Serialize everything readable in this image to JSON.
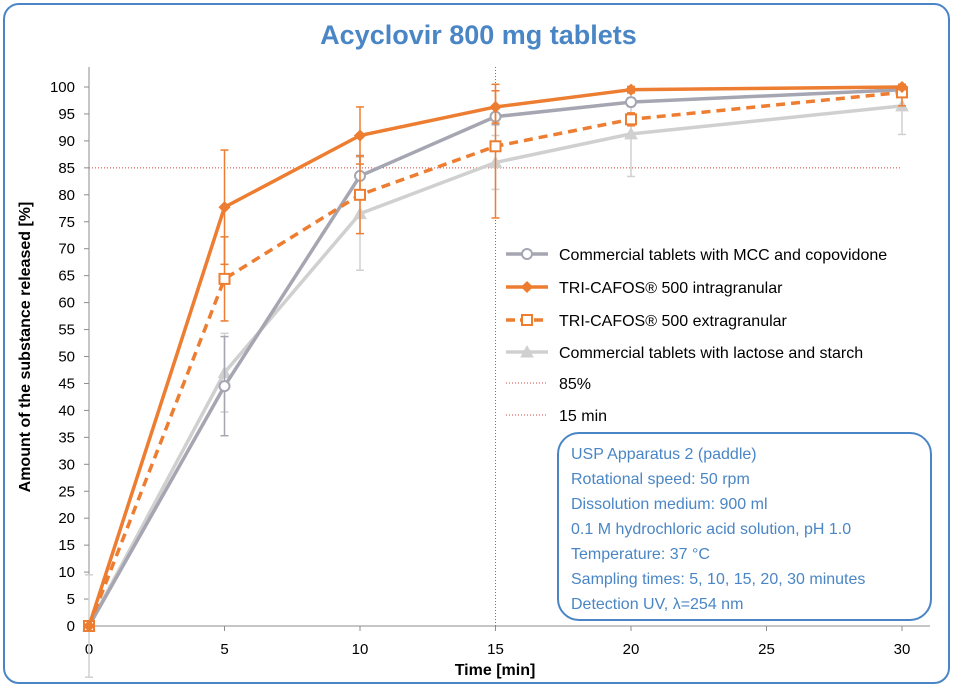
{
  "chart_data": {
    "type": "line",
    "title": "Acyclovir 800 mg tablets",
    "xlabel": "Time [min]",
    "ylabel": "Amount of the substance released [%]",
    "xlim": [
      0,
      31
    ],
    "ylim": [
      0,
      100
    ],
    "x_ticks": [
      0,
      5,
      10,
      15,
      20,
      25,
      30
    ],
    "y_ticks": [
      0,
      5,
      10,
      15,
      20,
      25,
      30,
      35,
      40,
      45,
      50,
      55,
      60,
      65,
      70,
      75,
      80,
      85,
      90,
      95,
      100
    ],
    "series": [
      {
        "name": "Commercial tablets with MCC and copovidone",
        "color": "#a6a6b2",
        "marker": "circle",
        "dash": "solid",
        "x": [
          0,
          5,
          10,
          15,
          20,
          30
        ],
        "y": [
          0,
          44.5,
          83.5,
          94.5,
          97.2,
          99.5
        ],
        "err": [
          0,
          9.2,
          3.8,
          1.5,
          0.8,
          0.8
        ]
      },
      {
        "name": "TRI-CAFOS® 500 intragranular",
        "color": "#ed7d31",
        "marker": "diamond",
        "dash": "solid",
        "x": [
          0,
          5,
          10,
          15,
          20,
          30
        ],
        "y": [
          0,
          77.7,
          91,
          96.3,
          99.5,
          100
        ],
        "err": [
          0,
          10.6,
          5.3,
          3,
          0.6,
          0.5
        ]
      },
      {
        "name": "TRI-CAFOS® 500 extragranular",
        "color": "#ed7d31",
        "marker": "square",
        "dash": "dashed",
        "x": [
          0,
          5,
          10,
          15,
          20,
          30
        ],
        "y": [
          0,
          64.4,
          80,
          89,
          94,
          99
        ],
        "err": [
          0,
          7.8,
          7.2,
          13.3,
          1.2,
          2.5
        ]
      },
      {
        "name": "Commercial tablets with lactose and starch",
        "color": "#d0d0d0",
        "marker": "triangle",
        "dash": "solid",
        "x": [
          0,
          5,
          10,
          15,
          20,
          30
        ],
        "y": [
          0,
          47,
          76.5,
          86,
          91.3,
          96.5
        ],
        "err": [
          9.5,
          7.3,
          10.5,
          5,
          7.9,
          5.3
        ]
      }
    ],
    "reference_lines": [
      {
        "name": "85%",
        "axis": "y",
        "value": 85,
        "color": "#d9463b"
      },
      {
        "name": "15 min",
        "axis": "x",
        "value": 15,
        "color": "#d9463b"
      }
    ],
    "legend_position": "right"
  },
  "info_box": [
    "USP Apparatus 2 (paddle)",
    "Rotational speed: 50 rpm",
    "Dissolution medium: 900 ml",
    "0.1 M hydrochloric acid solution, pH 1.0",
    "Temperature: 37 °C",
    "Sampling times: 5, 10, 15, 20, 30 minutes",
    "Detection UV, λ=254 nm"
  ]
}
